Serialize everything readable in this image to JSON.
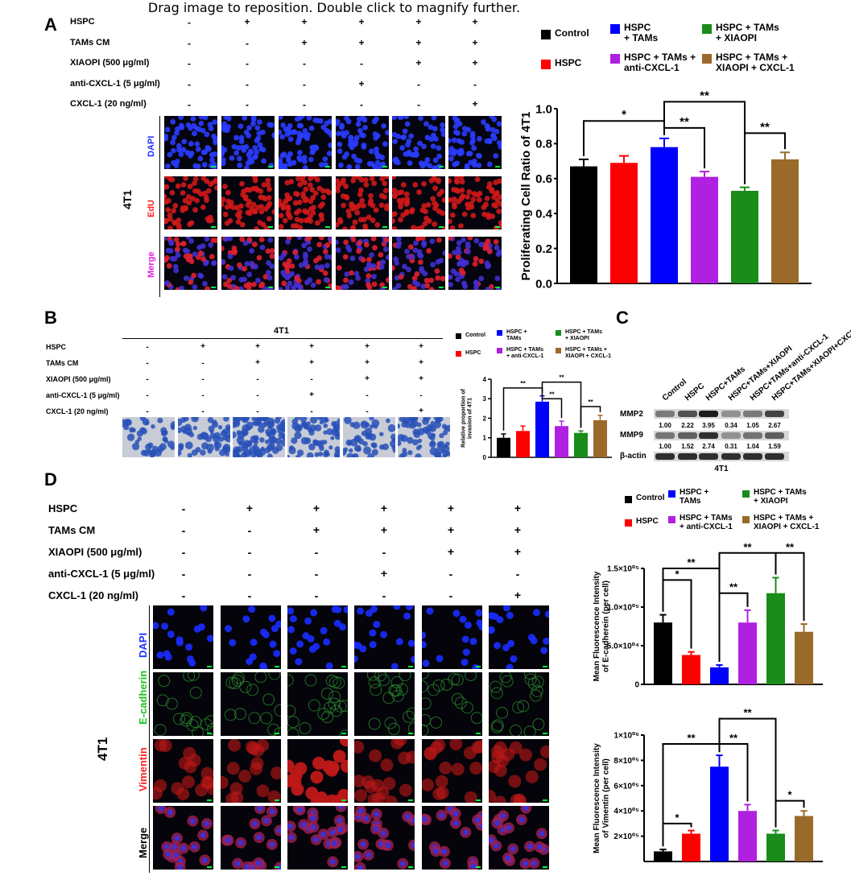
{
  "viewer_hint": "Drag image to reposition. Double click to magnify further.",
  "colors": {
    "control": "#000000",
    "hspc": "#ff0000",
    "hspc_tams": "#0000ff",
    "anti": "#b020e0",
    "xiaopi": "#1a8c1a",
    "cxcl": "#9a6a2a"
  },
  "legend": {
    "control": "Control",
    "hspc": "HSPC",
    "hspc_tams": "HSPC\n+ TAMs",
    "anti": "HSPC + TAMs +\nanti-CXCL-1",
    "xiaopi": "HSPC + TAMs\n+ XIAOPI",
    "cxcl": "HSPC + TAMs +\nXIAOPI + CXCL-1"
  },
  "legend_small": {
    "hspc_tams": "HSPC +\nTAMs",
    "anti": "HSPC + TAMs\n+ anti-CXCL-1",
    "xiaopi": "HSPC + TAMs\n+ XIAOPI",
    "cxcl": "HSPC + TAMs +\nXIAOPI + CXCL-1"
  },
  "legend_d": {
    "hspc_tams": "HSPC +\nTAMs",
    "anti": "HSPC + TAMs\n+ anti-CXCL-1",
    "xiaopi": "HSPC + TAMs\n+ XIAOPI",
    "cxcl": "HSPC + TAMs +\nXIAOPI + CXCL-1"
  },
  "conditions": {
    "labels": [
      "HSPC",
      "TAMs CM",
      "XIAOPI (500 μg/ml)",
      "anti-CXCL-1 (5 μg/ml)",
      "CXCL-1 (20 ng/ml)"
    ],
    "signs": [
      [
        "-",
        "+",
        "+",
        "+",
        "+",
        "+"
      ],
      [
        "-",
        "-",
        "+",
        "+",
        "+",
        "+"
      ],
      [
        "-",
        "-",
        "-",
        "-",
        "+",
        "+"
      ],
      [
        "-",
        "-",
        "-",
        "+",
        "-",
        "-"
      ],
      [
        "-",
        "-",
        "-",
        "-",
        "-",
        "+"
      ]
    ]
  },
  "panel_a": {
    "label": "A",
    "cell_line": "4T1",
    "rows": [
      "DAPI",
      "EdU",
      "Merge"
    ]
  },
  "panel_b": {
    "label": "B",
    "cell_line": "4T1"
  },
  "panel_c": {
    "label": "C",
    "lanes": [
      "Control",
      "HSPC",
      "HSPC+TAMs",
      "HSPC+TAMs+XIAOPI",
      "HSPC+TAMs+anti-CXCL-1",
      "HSPC+TAMs+XIAOPI+CXCL-1"
    ],
    "mmp2_label": "MMP2",
    "mmp2_values": [
      "1.00",
      "2.22",
      "3.95",
      "0.34",
      "1.05",
      "2.67"
    ],
    "mmp9_label": "MMP9",
    "mmp9_values": [
      "1.00",
      "1.52",
      "2.74",
      "0.31",
      "1.04",
      "1.59"
    ],
    "actin_label": "β-actin",
    "cell_line": "4T1"
  },
  "panel_d": {
    "label": "D",
    "cell_line": "4T1",
    "rows": [
      "DAPI",
      "E-cadherin",
      "Vimentin",
      "Merge"
    ]
  },
  "chart_data": [
    {
      "type": "bar",
      "panel": "A",
      "categories": [
        "Control",
        "HSPC",
        "HSPC + TAMs",
        "HSPC + TAMs + anti-CXCL-1",
        "HSPC + TAMs + XIAOPI",
        "HSPC + TAMs + XIAOPI + CXCL-1"
      ],
      "values": [
        0.67,
        0.69,
        0.78,
        0.61,
        0.53,
        0.71
      ],
      "errors": [
        0.04,
        0.04,
        0.05,
        0.03,
        0.02,
        0.04
      ],
      "ylabel": "Proliferating Cell Ratio of 4T1",
      "ylim": [
        0,
        1.0
      ],
      "yticks": [
        "0.0",
        "0.2",
        "0.4",
        "0.6",
        "0.8",
        "1.0"
      ],
      "significance": [
        "*",
        "**",
        "**",
        "**"
      ]
    },
    {
      "type": "bar",
      "panel": "B",
      "categories": [
        "Control",
        "HSPC",
        "HSPC + TAMs",
        "HSPC + TAMs + anti-CXCL-1",
        "HSPC + TAMs + XIAOPI",
        "HSPC + TAMs + XIAOPI + CXCL-1"
      ],
      "values": [
        1.0,
        1.35,
        2.85,
        1.6,
        1.25,
        1.9
      ],
      "errors": [
        0.2,
        0.25,
        0.3,
        0.25,
        0.1,
        0.25
      ],
      "ylabel": "Relative proportion of invasion of 4T1",
      "ylim": [
        0,
        4
      ],
      "yticks": [
        "0",
        "1",
        "2",
        "3",
        "4"
      ],
      "significance": [
        "**",
        "**",
        "**",
        "**"
      ]
    },
    {
      "type": "bar",
      "panel": "D-top",
      "categories": [
        "Control",
        "HSPC",
        "HSPC + TAMs",
        "HSPC + TAMs + anti-CXCL-1",
        "HSPC + TAMs + XIAOPI",
        "HSPC + TAMs + XIAOPI + CXCL-1"
      ],
      "values": [
        80000,
        38000,
        22000,
        80000,
        118000,
        68000
      ],
      "errors": [
        10000,
        4000,
        3000,
        16000,
        20000,
        10000
      ],
      "ylabel": "Mean Fluorescence Intensity of E-cadherein (per cell)",
      "ylim": [
        0,
        150000
      ],
      "yticks": [
        "0",
        "5.0×10⁰⁴",
        "1.0×10⁰⁵",
        "1.5×10⁰⁵"
      ],
      "significance": [
        "*",
        "**",
        "**",
        "**",
        "**"
      ]
    },
    {
      "type": "bar",
      "panel": "D-bottom",
      "categories": [
        "Control",
        "HSPC",
        "HSPC + TAMs",
        "HSPC + TAMs + anti-CXCL-1",
        "HSPC + TAMs + XIAOPI",
        "HSPC + TAMs + XIAOPI + CXCL-1"
      ],
      "values": [
        80000,
        220000,
        750000,
        400000,
        220000,
        360000
      ],
      "errors": [
        15000,
        25000,
        90000,
        50000,
        25000,
        40000
      ],
      "ylabel": "Mean Fluorescence Intensity of Vimentin (per cell)",
      "ylim": [
        0,
        1000000
      ],
      "yticks": [
        "2×10⁰⁵",
        "4×10⁰⁵",
        "6×10⁰⁵",
        "8×10⁰⁵",
        "1×10⁰⁶"
      ],
      "ytick_values": [
        200000,
        400000,
        600000,
        800000,
        1000000
      ],
      "significance": [
        "*",
        "**",
        "**",
        "**",
        "*"
      ]
    }
  ]
}
